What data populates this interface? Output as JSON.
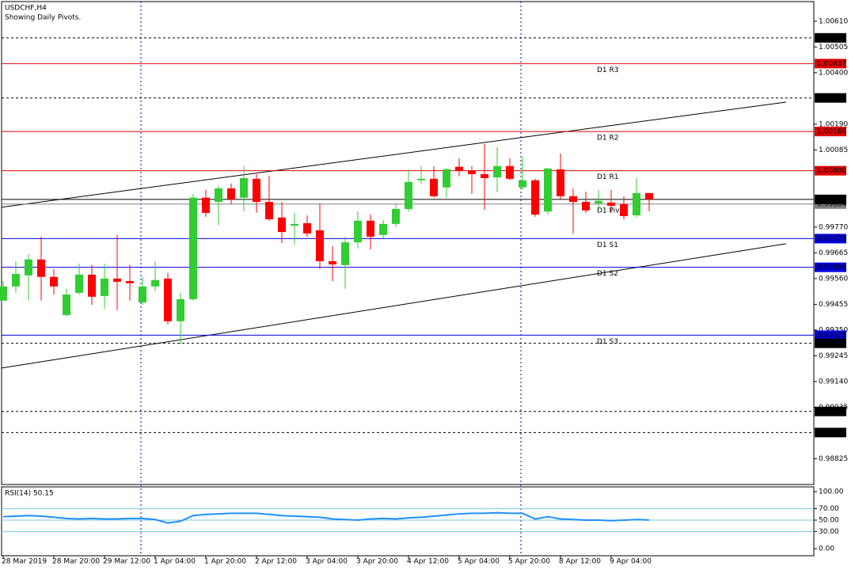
{
  "chart_data": {
    "type": "candlestick",
    "title": "USDCHF,H4",
    "subtitle": "Showing Daily Pivots.",
    "categories": [
      "28 Mar 2019",
      null,
      null,
      null,
      "28 Mar 20:00",
      null,
      null,
      null,
      "29 Mar 12:00",
      null,
      null,
      null,
      "1 Apr 04:00",
      null,
      null,
      null,
      "1 Apr 20:00",
      null,
      null,
      null,
      "2 Apr 12:00",
      null,
      null,
      null,
      "3 Apr 04:00",
      null,
      null,
      null,
      "3 Apr 20:00",
      null,
      null,
      null,
      "4 Apr 12:00",
      null,
      null,
      null,
      "5 Apr 04:00",
      null,
      null,
      null,
      "5 Apr 20:00",
      null,
      null,
      null,
      "8 Apr 12:00",
      null,
      null,
      null,
      "9 Apr 04:00",
      null,
      null,
      null
    ],
    "open": [
      0.9947,
      0.99528,
      0.99573,
      0.99638,
      0.99567,
      0.99411,
      0.99502,
      0.99576,
      0.99489,
      0.9956,
      0.9955,
      0.99463,
      0.99528,
      0.9956,
      0.99386,
      0.99476,
      0.9989,
      0.99873,
      0.99928,
      0.9989,
      0.99967,
      0.99873,
      0.99809,
      0.99776,
      0.99786,
      0.99757,
      0.99631,
      0.99615,
      0.99708,
      0.99796,
      0.99738,
      0.99783,
      0.99844,
      0.99961,
      0.99967,
      0.99932,
      1.00016,
      0.99999,
      0.99986,
      0.99973,
      1.00019,
      0.99932,
      0.99961,
      0.99834,
      1.00006,
      0.99896,
      0.99873,
      0.99867,
      0.9987,
      0.99864,
      0.99818,
      0.99909
    ],
    "high": [
      0.9955,
      0.99631,
      0.9966,
      0.99731,
      0.99599,
      0.99518,
      0.99621,
      0.99615,
      0.99621,
      0.99738,
      0.99615,
      0.99567,
      0.99631,
      0.99583,
      0.99502,
      0.99906,
      0.99922,
      0.99938,
      0.99948,
      1.00019,
      0.99986,
      0.9998,
      0.99873,
      0.99828,
      0.99818,
      0.99867,
      0.99692,
      0.99731,
      0.99834,
      0.99821,
      0.99799,
      0.99864,
      1.00003,
      1.00019,
      1.00019,
      1.00012,
      1.00051,
      1.00019,
      1.00109,
      1.00096,
      1.00051,
      1.00058,
      0.99967,
      1.00012,
      1.0007,
      0.99928,
      0.99915,
      0.99922,
      0.99922,
      0.99896,
      0.9997,
      0.99909
    ],
    "low": [
      0.9947,
      0.99502,
      0.9947,
      0.9947,
      0.99495,
      0.99405,
      0.99495,
      0.99453,
      0.99437,
      0.99431,
      0.9947,
      0.99453,
      0.99508,
      0.99373,
      0.99292,
      0.9947,
      0.99812,
      0.99779,
      0.99864,
      0.99834,
      0.99828,
      0.99796,
      0.99705,
      0.99699,
      0.99731,
      0.99599,
      0.9955,
      0.99518,
      0.99683,
      0.99679,
      0.99725,
      0.9977,
      0.99834,
      0.99948,
      0.9989,
      0.9989,
      0.99977,
      0.99906,
      0.99841,
      0.99912,
      0.99961,
      0.99922,
      0.99812,
      0.99821,
      0.99883,
      0.99744,
      0.99828,
      0.99838,
      0.99828,
      0.99802,
      0.99809,
      0.99834
    ],
    "close": [
      0.99528,
      0.99579,
      0.99638,
      0.99567,
      0.99528,
      0.99495,
      0.99576,
      0.99486,
      0.9956,
      0.99547,
      0.99541,
      0.99528,
      0.99554,
      0.99386,
      0.99476,
      0.9989,
      0.99828,
      0.99928,
      0.99883,
      0.9997,
      0.99873,
      0.99802,
      0.9975,
      0.99783,
      0.99744,
      0.99631,
      0.99618,
      0.99708,
      0.99796,
      0.99731,
      0.99783,
      0.99844,
      0.99954,
      0.99967,
      0.99896,
      1.00006,
      0.99999,
      0.99986,
      0.9997,
      1.00019,
      0.99967,
      0.99961,
      0.99821,
      1.00009,
      0.99896,
      0.99873,
      0.99838,
      0.99877,
      0.99857,
      0.99815,
      0.99909,
      0.99883
    ],
    "up_color": "#32cd32",
    "down_color": "#ff0000",
    "ylim": [
      0.9872,
      1.0069
    ],
    "yticks": [
      {
        "value": 1.0061,
        "label": "1.00610"
      },
      {
        "value": 1.00505,
        "label": "1.00505"
      },
      {
        "value": 1.004,
        "label": "1.00400"
      },
      {
        "value": 1.0019,
        "label": "1.00190"
      },
      {
        "value": 1.00085,
        "label": "1.00085"
      },
      {
        "value": 0.9977,
        "label": "0.99770"
      },
      {
        "value": 0.99665,
        "label": "0.99665"
      },
      {
        "value": 0.9956,
        "label": "0.99560"
      },
      {
        "value": 0.99455,
        "label": "0.99455"
      },
      {
        "value": 0.9935,
        "label": "0.99350"
      },
      {
        "value": 0.99245,
        "label": "0.99245"
      },
      {
        "value": 0.9914,
        "label": "0.99140"
      },
      {
        "value": 0.99035,
        "label": "0.99035"
      },
      {
        "value": 0.98825,
        "label": "0.98825"
      }
    ],
    "trendlines": [
      {
        "x": [
          -0.125,
          61.8
        ],
        "y": [
          0.99851,
          1.0028
        ]
      },
      {
        "x": [
          -0.125,
          61.8
        ],
        "y": [
          0.99195,
          0.99702
        ]
      }
    ],
    "hlines": [
      {
        "value": 1.00542,
        "value_label": "1.00542",
        "color": "#000000",
        "style": "dashed"
      },
      {
        "value": 1.00437,
        "value_label": "1.00437",
        "color": "#e00000",
        "style": "solid",
        "name": "D1 R3"
      },
      {
        "value": 1.00297,
        "value_label": "1.00297",
        "color": "#000000",
        "style": "dashed"
      },
      {
        "value": 1.0016,
        "value_label": "1.00160",
        "color": "#e00000",
        "style": "solid",
        "name": "D1 R2"
      },
      {
        "value": 1.0,
        "value_label": "1.00000",
        "color": "#e00000",
        "style": "solid",
        "name": "D1 R1"
      },
      {
        "value": 0.99864,
        "value_label": "0.99864",
        "color": "#808080",
        "style": "solid",
        "name": "D1 Pivot"
      },
      {
        "value": 0.99723,
        "value_label": "0.99723",
        "color": "#0000e0",
        "style": "solid",
        "name": "D1 S1"
      },
      {
        "value": 0.99606,
        "value_label": "0.99606",
        "color": "#0000e0",
        "style": "solid",
        "name": "D1 S2"
      },
      {
        "value": 0.99329,
        "value_label": "0.99329",
        "color": "#0000e0",
        "style": "solid",
        "name": "D1 S3"
      },
      {
        "value": 0.99296,
        "value_label": "0.99296",
        "color": "#000000",
        "style": "dashed"
      },
      {
        "value": 0.99018,
        "value_label": "0.99018",
        "color": "#000000",
        "style": "dashed"
      },
      {
        "value": 0.98932,
        "value_label": "0.98932",
        "color": "#000000",
        "style": "dashed"
      },
      {
        "value": 0.99883,
        "value_label": "0.99883",
        "color": "#000000",
        "style": "solid"
      }
    ],
    "rsi": {
      "title": "RSI(14) 50.15",
      "color": "#1e90ff",
      "values": [
        56,
        57,
        58,
        57,
        55,
        53,
        52,
        53,
        52,
        52,
        53,
        53,
        51,
        45,
        48,
        58,
        60,
        61,
        62,
        62,
        62,
        60,
        58,
        57,
        56,
        55,
        52,
        51,
        50,
        52,
        53,
        52,
        54,
        55,
        57,
        59,
        61,
        62,
        62,
        63,
        62,
        62,
        52,
        56,
        52,
        51,
        50,
        50,
        49,
        50,
        51,
        50.15
      ],
      "ylim": [
        -12.5,
        108.3
      ],
      "yticks": [
        {
          "value": 100,
          "label": "100.00"
        },
        {
          "value": 70,
          "label": "70.00"
        },
        {
          "value": 50,
          "label": "50.00"
        },
        {
          "value": 30,
          "label": "30.00"
        },
        {
          "value": 0,
          "label": "0.00"
        }
      ],
      "levels": [
        70,
        50,
        30
      ]
    }
  }
}
